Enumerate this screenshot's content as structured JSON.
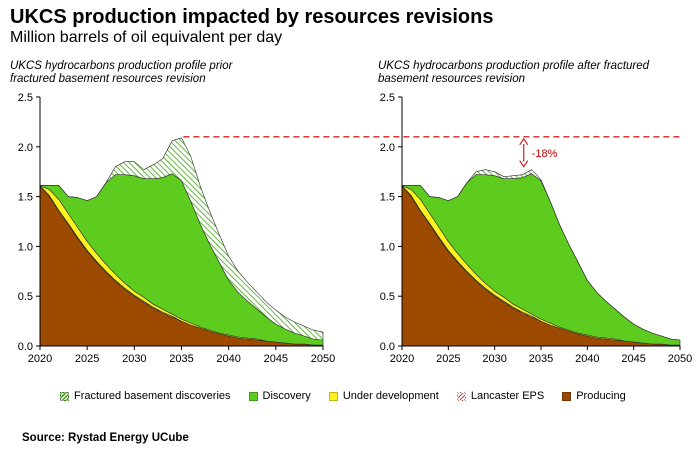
{
  "title": "UKCS production impacted by resources revisions",
  "subtitle": "Million barrels of oil equivalent per day",
  "source": "Source: Rystad Energy UCube",
  "colors": {
    "producing": "#9C4A00",
    "lancaster": "#E8C29A",
    "under_development": "#FFF21E",
    "discovery": "#5ECC1E",
    "fractured": "#9BDE6E",
    "reference_line": "#D42020"
  },
  "chart_data": [
    {
      "type": "area",
      "stacked": true,
      "title": "UKCS hydrocarbons production profile prior fractured basement resources revision",
      "title_lines": [
        "UKCS hydrocarbons production profile prior",
        "fractured basement resources revision"
      ],
      "xlim": [
        2020,
        2050
      ],
      "ylim": [
        0,
        2.5
      ],
      "x_ticks": [
        "2020",
        "2025",
        "2030",
        "2035",
        "2040",
        "2045",
        "2050"
      ],
      "y_ticks": [
        "0.0",
        "0.5",
        "1.0",
        "1.5",
        "2.0",
        "2.5"
      ],
      "x": [
        2020,
        2021,
        2022,
        2023,
        2024,
        2025,
        2026,
        2027,
        2028,
        2029,
        2030,
        2031,
        2032,
        2033,
        2034,
        2035,
        2036,
        2037,
        2038,
        2039,
        2040,
        2041,
        2042,
        2043,
        2044,
        2045,
        2046,
        2047,
        2048,
        2049,
        2050
      ],
      "series": [
        {
          "key": "producing",
          "name": "Producing",
          "values": [
            1.6,
            1.5,
            1.35,
            1.22,
            1.08,
            0.95,
            0.84,
            0.74,
            0.65,
            0.57,
            0.5,
            0.44,
            0.38,
            0.33,
            0.29,
            0.25,
            0.21,
            0.18,
            0.15,
            0.12,
            0.1,
            0.08,
            0.07,
            0.06,
            0.05,
            0.04,
            0.03,
            0.02,
            0.02,
            0.01,
            0.01
          ]
        },
        {
          "key": "lancaster",
          "name": "Lancaster EPS",
          "values": [
            0.01,
            0.01,
            0.01,
            0.01,
            0.01,
            0.01,
            0.01,
            0.01,
            0.01,
            0.01,
            0.01,
            0.01,
            0.01,
            0.01,
            0.01,
            0,
            0,
            0,
            0,
            0,
            0,
            0,
            0,
            0,
            0,
            0,
            0,
            0,
            0,
            0,
            0
          ]
        },
        {
          "key": "under_development",
          "name": "Under development",
          "values": [
            0,
            0.06,
            0.11,
            0.1,
            0.1,
            0.09,
            0.08,
            0.07,
            0.06,
            0.05,
            0.04,
            0.04,
            0.03,
            0.03,
            0.02,
            0.02,
            0.02,
            0.01,
            0.01,
            0.01,
            0.01,
            0.01,
            0.01,
            0.01,
            0,
            0,
            0,
            0,
            0,
            0,
            0
          ]
        },
        {
          "key": "discovery",
          "name": "Discovery",
          "values": [
            0,
            0.04,
            0.14,
            0.17,
            0.3,
            0.41,
            0.57,
            0.82,
            1.0,
            1.09,
            1.16,
            1.19,
            1.26,
            1.32,
            1.41,
            1.39,
            1.22,
            1.03,
            0.86,
            0.71,
            0.55,
            0.45,
            0.37,
            0.3,
            0.24,
            0.18,
            0.14,
            0.11,
            0.08,
            0.06,
            0.05
          ]
        },
        {
          "key": "fractured",
          "name": "Fractured basement discoveries",
          "values": [
            0,
            0,
            0,
            0,
            0,
            0,
            0,
            0,
            0.08,
            0.13,
            0.14,
            0.09,
            0.14,
            0.19,
            0.33,
            0.43,
            0.45,
            0.38,
            0.33,
            0.28,
            0.24,
            0.21,
            0.19,
            0.17,
            0.15,
            0.14,
            0.12,
            0.11,
            0.1,
            0.09,
            0.08
          ]
        }
      ]
    },
    {
      "type": "area",
      "stacked": true,
      "title": "UKCS hydrocarbons production profile after fractured basement resources revision",
      "title_lines": [
        "UKCS hydrocarbons production profile after fractured",
        "basement resources revision"
      ],
      "xlim": [
        2020,
        2050
      ],
      "ylim": [
        0,
        2.5
      ],
      "x_ticks": [
        "2020",
        "2025",
        "2030",
        "2035",
        "2040",
        "2045",
        "2050"
      ],
      "y_ticks": [
        "0.0",
        "0.5",
        "1.0",
        "1.5",
        "2.0",
        "2.5"
      ],
      "x": [
        2020,
        2021,
        2022,
        2023,
        2024,
        2025,
        2026,
        2027,
        2028,
        2029,
        2030,
        2031,
        2032,
        2033,
        2034,
        2035,
        2036,
        2037,
        2038,
        2039,
        2040,
        2041,
        2042,
        2043,
        2044,
        2045,
        2046,
        2047,
        2048,
        2049,
        2050
      ],
      "series": [
        {
          "key": "producing",
          "name": "Producing",
          "values": [
            1.6,
            1.5,
            1.35,
            1.22,
            1.08,
            0.95,
            0.84,
            0.74,
            0.65,
            0.57,
            0.5,
            0.44,
            0.38,
            0.33,
            0.29,
            0.25,
            0.21,
            0.18,
            0.15,
            0.12,
            0.1,
            0.08,
            0.07,
            0.06,
            0.05,
            0.04,
            0.03,
            0.02,
            0.02,
            0.01,
            0.01
          ]
        },
        {
          "key": "lancaster",
          "name": "Lancaster EPS",
          "values": [
            0.01,
            0.01,
            0.01,
            0.01,
            0.01,
            0.01,
            0.01,
            0.01,
            0.01,
            0.01,
            0.01,
            0.01,
            0.01,
            0.01,
            0.01,
            0,
            0,
            0,
            0,
            0,
            0,
            0,
            0,
            0,
            0,
            0,
            0,
            0,
            0,
            0,
            0
          ]
        },
        {
          "key": "under_development",
          "name": "Under development",
          "values": [
            0,
            0.06,
            0.11,
            0.1,
            0.1,
            0.09,
            0.08,
            0.07,
            0.06,
            0.05,
            0.04,
            0.04,
            0.03,
            0.03,
            0.02,
            0.02,
            0.02,
            0.01,
            0.01,
            0.01,
            0.01,
            0.01,
            0.01,
            0.01,
            0,
            0,
            0,
            0,
            0,
            0,
            0
          ]
        },
        {
          "key": "discovery",
          "name": "Discovery",
          "values": [
            0,
            0.04,
            0.14,
            0.17,
            0.3,
            0.41,
            0.57,
            0.82,
            1.0,
            1.09,
            1.16,
            1.19,
            1.26,
            1.32,
            1.41,
            1.39,
            1.22,
            1.03,
            0.86,
            0.71,
            0.55,
            0.45,
            0.37,
            0.3,
            0.24,
            0.18,
            0.14,
            0.11,
            0.08,
            0.06,
            0.05
          ]
        },
        {
          "key": "fractured",
          "name": "Fractured basement discoveries",
          "values": [
            0,
            0,
            0,
            0,
            0,
            0,
            0,
            0,
            0.03,
            0.05,
            0.04,
            0.02,
            0.03,
            0.03,
            0.04,
            0.01,
            0,
            0,
            0,
            0,
            0,
            0,
            0,
            0,
            0,
            0,
            0,
            0,
            0,
            0,
            0
          ]
        }
      ],
      "annotation": {
        "label": "-18%",
        "reference_value": 2.1,
        "from_year": 2034
      }
    }
  ],
  "legend": [
    {
      "key": "fractured",
      "label": "Fractured basement discoveries"
    },
    {
      "key": "discovery",
      "label": "Discovery"
    },
    {
      "key": "under_development",
      "label": "Under development"
    },
    {
      "key": "lancaster",
      "label": "Lancaster EPS"
    },
    {
      "key": "producing",
      "label": "Producing"
    }
  ]
}
